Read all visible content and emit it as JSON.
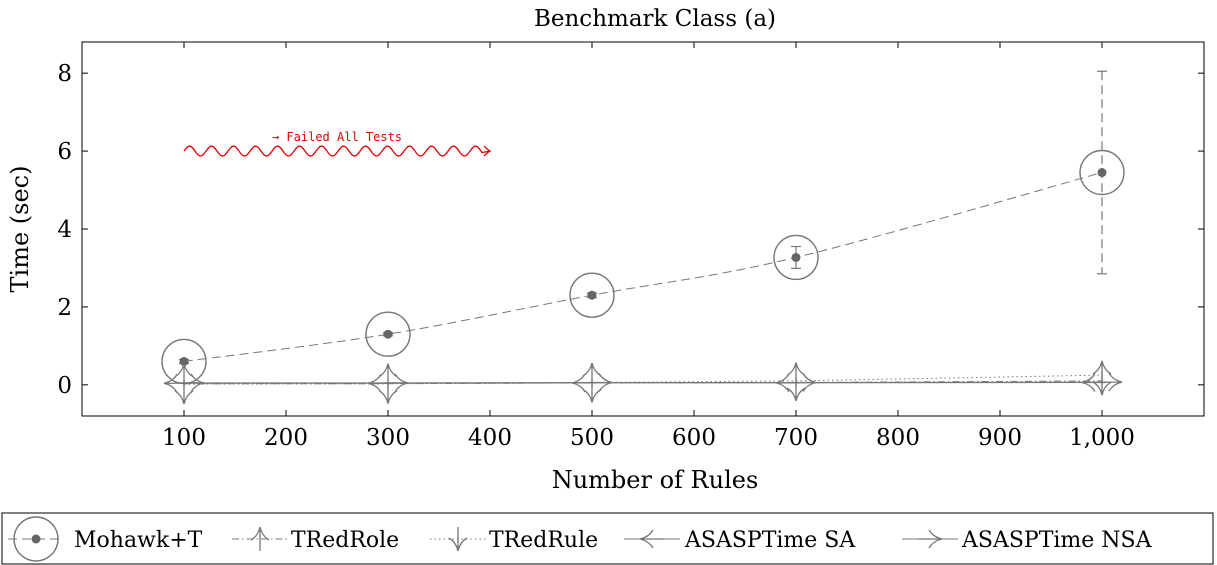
{
  "chart_data": {
    "type": "line",
    "title": "Benchmark Class (a)",
    "xlabel": "Number of Rules",
    "ylabel": "Time (sec)",
    "xlim": [
      0,
      1100
    ],
    "ylim": [
      -0.8,
      8.8
    ],
    "xticks": [
      100,
      200,
      300,
      400,
      500,
      600,
      700,
      800,
      900,
      1000
    ],
    "xtick_labels": [
      "100",
      "200",
      "300",
      "400",
      "500",
      "600",
      "700",
      "800",
      "900",
      "1,000"
    ],
    "yticks": [
      0,
      2,
      4,
      6,
      8
    ],
    "ytick_labels": [
      "0",
      "2",
      "4",
      "6",
      "8"
    ],
    "grid": false,
    "legend_position": "below",
    "annotation": {
      "text": "→ Failed All Tests",
      "x_start": 100,
      "x_end": 400,
      "y": 6,
      "color": "#e00000"
    },
    "x": [
      100,
      300,
      500,
      700,
      1000
    ],
    "series": [
      {
        "name": "Mohawk+T",
        "marker": "circle",
        "style": "dashed",
        "values": [
          0.6,
          1.3,
          2.3,
          3.27,
          5.45
        ],
        "error": [
          0.05,
          0.04,
          0.06,
          0.28,
          2.6
        ]
      },
      {
        "name": "TRedRole",
        "marker": "up-arrow",
        "style": "dashdot",
        "values": [
          0.03,
          0.03,
          0.05,
          0.06,
          0.1
        ]
      },
      {
        "name": "TRedRule",
        "marker": "down-arrow",
        "style": "dotted",
        "values": [
          0.02,
          0.03,
          0.06,
          0.1,
          0.25
        ]
      },
      {
        "name": "ASASPTime SA",
        "marker": "left-arrow",
        "style": "solid",
        "values": [
          0.04,
          0.04,
          0.05,
          0.05,
          0.06
        ]
      },
      {
        "name": "ASASPTime NSA",
        "marker": "right-arrow",
        "style": "solid",
        "values": [
          0.05,
          0.05,
          0.06,
          0.06,
          0.07
        ]
      }
    ]
  }
}
